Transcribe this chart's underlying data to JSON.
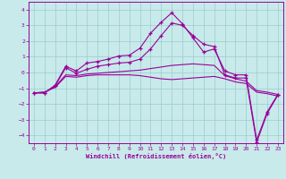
{
  "xlabel": "Windchill (Refroidissement éolien,°C)",
  "bg_color": "#c8eaea",
  "line_color": "#990099",
  "grid_color": "#99cccc",
  "xlim": [
    -0.5,
    23.5
  ],
  "ylim": [
    -4.5,
    4.5
  ],
  "yticks": [
    -4,
    -3,
    -2,
    -1,
    0,
    1,
    2,
    3,
    4
  ],
  "xticks": [
    0,
    1,
    2,
    3,
    4,
    5,
    6,
    7,
    8,
    9,
    10,
    11,
    12,
    13,
    14,
    15,
    16,
    17,
    18,
    19,
    20,
    21,
    22,
    23
  ],
  "series": [
    {
      "y": [
        -1.3,
        -1.3,
        -0.8,
        0.4,
        0.1,
        0.6,
        0.7,
        0.85,
        1.05,
        1.1,
        1.55,
        2.5,
        3.2,
        3.8,
        3.1,
        2.2,
        1.3,
        1.5,
        0.1,
        -0.15,
        -0.15,
        -4.3,
        -2.5,
        -1.4
      ],
      "marker": true
    },
    {
      "y": [
        -1.3,
        -1.3,
        -0.85,
        0.3,
        -0.05,
        0.2,
        0.4,
        0.5,
        0.6,
        0.65,
        0.85,
        1.5,
        2.35,
        3.15,
        3.0,
        2.35,
        1.8,
        1.65,
        -0.15,
        -0.35,
        -0.35,
        -4.45,
        -2.6,
        -1.45
      ],
      "marker": true
    },
    {
      "y": [
        -1.3,
        -1.25,
        -0.9,
        -0.15,
        -0.2,
        -0.1,
        -0.05,
        0.0,
        0.05,
        0.1,
        0.15,
        0.25,
        0.35,
        0.45,
        0.5,
        0.55,
        0.5,
        0.45,
        -0.2,
        -0.4,
        -0.55,
        -1.15,
        -1.25,
        -1.4
      ],
      "marker": false
    },
    {
      "y": [
        -1.3,
        -1.25,
        -0.95,
        -0.25,
        -0.3,
        -0.2,
        -0.15,
        -0.15,
        -0.15,
        -0.15,
        -0.2,
        -0.3,
        -0.4,
        -0.45,
        -0.4,
        -0.35,
        -0.3,
        -0.25,
        -0.4,
        -0.6,
        -0.7,
        -1.25,
        -1.35,
        -1.5
      ],
      "marker": false
    }
  ]
}
